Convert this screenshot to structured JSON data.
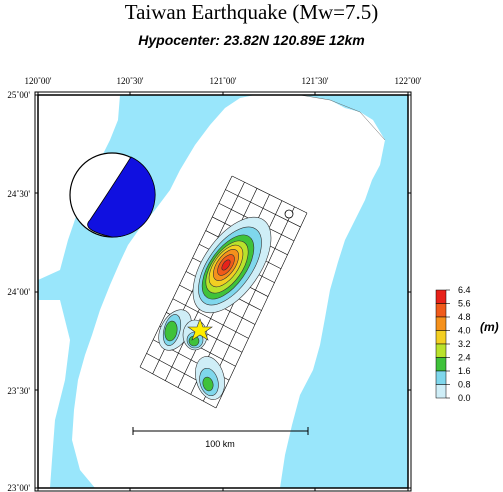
{
  "title": "Taiwan Earthquake (Mw=7.5)",
  "subtitle": "Hypocenter: 23.82N  120.89E  12km",
  "map": {
    "lon_ticks": [
      "120˚00'",
      "120˚30'",
      "121˚00'",
      "121˚30'",
      "122˚00'"
    ],
    "lat_ticks": [
      "25˚00'",
      "24˚30'",
      "24˚00'",
      "23˚30'",
      "23˚00'"
    ],
    "extent": {
      "lon": [
        120.0,
        122.0
      ],
      "lat": [
        23.0,
        25.0
      ]
    },
    "scale_bar_label": "100 km",
    "colors": {
      "sea": "#99e6fb",
      "land": "#ffffff",
      "star": "#ffee00",
      "mechanism_fill": "#1010e0"
    }
  },
  "colorbar": {
    "unit": "(m)",
    "labels": [
      "6.4",
      "5.6",
      "4.8",
      "4.0",
      "3.2",
      "2.4",
      "1.6",
      "0.8",
      "0.0"
    ],
    "colors": [
      "#e8221a",
      "#f05a1a",
      "#f5911c",
      "#f3cf22",
      "#b9e22c",
      "#3fc23a",
      "#7fd7ec",
      "#cfeef7",
      "#ffffff"
    ]
  }
}
